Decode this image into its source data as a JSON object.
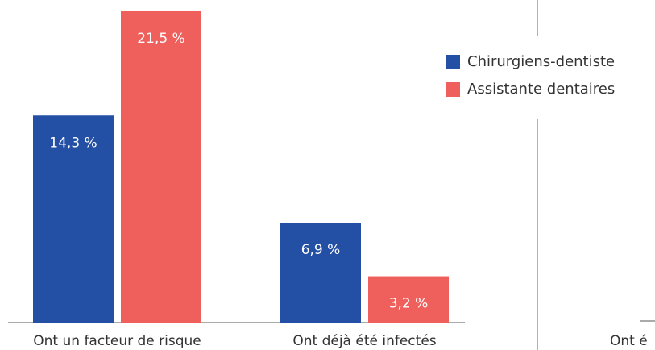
{
  "chart_data": {
    "type": "bar",
    "categories": [
      "Ont un facteur de risque",
      "Ont déjà été infectés"
    ],
    "series": [
      {
        "name": "Chirurgiens-dentiste",
        "color": "#2350a5",
        "values": [
          14.3,
          6.9
        ],
        "value_labels": [
          "14,3 %",
          "6,9 %"
        ]
      },
      {
        "name": "Assistante dentaires",
        "color": "#ef5f5c",
        "values": [
          21.5,
          3.2
        ],
        "value_labels": [
          "21,5 %",
          "3,2 %"
        ]
      }
    ],
    "ylim": [
      0,
      22
    ],
    "legend": "right"
  },
  "fragment": {
    "label": "Ont é"
  }
}
